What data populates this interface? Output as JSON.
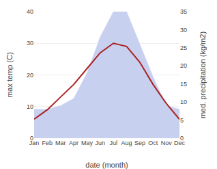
{
  "chart_data": {
    "type": "line",
    "categories": [
      "Jan",
      "Feb",
      "Mar",
      "Apr",
      "May",
      "Jun",
      "Jul",
      "Aug",
      "Sep",
      "Oct",
      "Nov",
      "Dec"
    ],
    "xlabel": "date (month)",
    "ylabel": "max temp (C)",
    "y2label": "med. precipitation (kg/m2)",
    "series": [
      {
        "type": "area",
        "axis": "y2",
        "color": "#c8d0f0",
        "values": [
          8,
          8,
          9,
          11,
          18,
          28,
          35,
          35,
          26,
          17,
          9,
          8
        ]
      },
      {
        "type": "line",
        "color": "#aa2222",
        "values": [
          6,
          9,
          13,
          17,
          22,
          27,
          30,
          29,
          24,
          17,
          11,
          6
        ]
      }
    ],
    "ylim": [
      0,
      40
    ],
    "yticks": [
      0,
      10,
      20,
      30,
      40
    ],
    "y2lim": [
      0,
      35
    ],
    "y2ticks": [
      0,
      5,
      10,
      15,
      20,
      25,
      30,
      35
    ],
    "grid": true
  }
}
